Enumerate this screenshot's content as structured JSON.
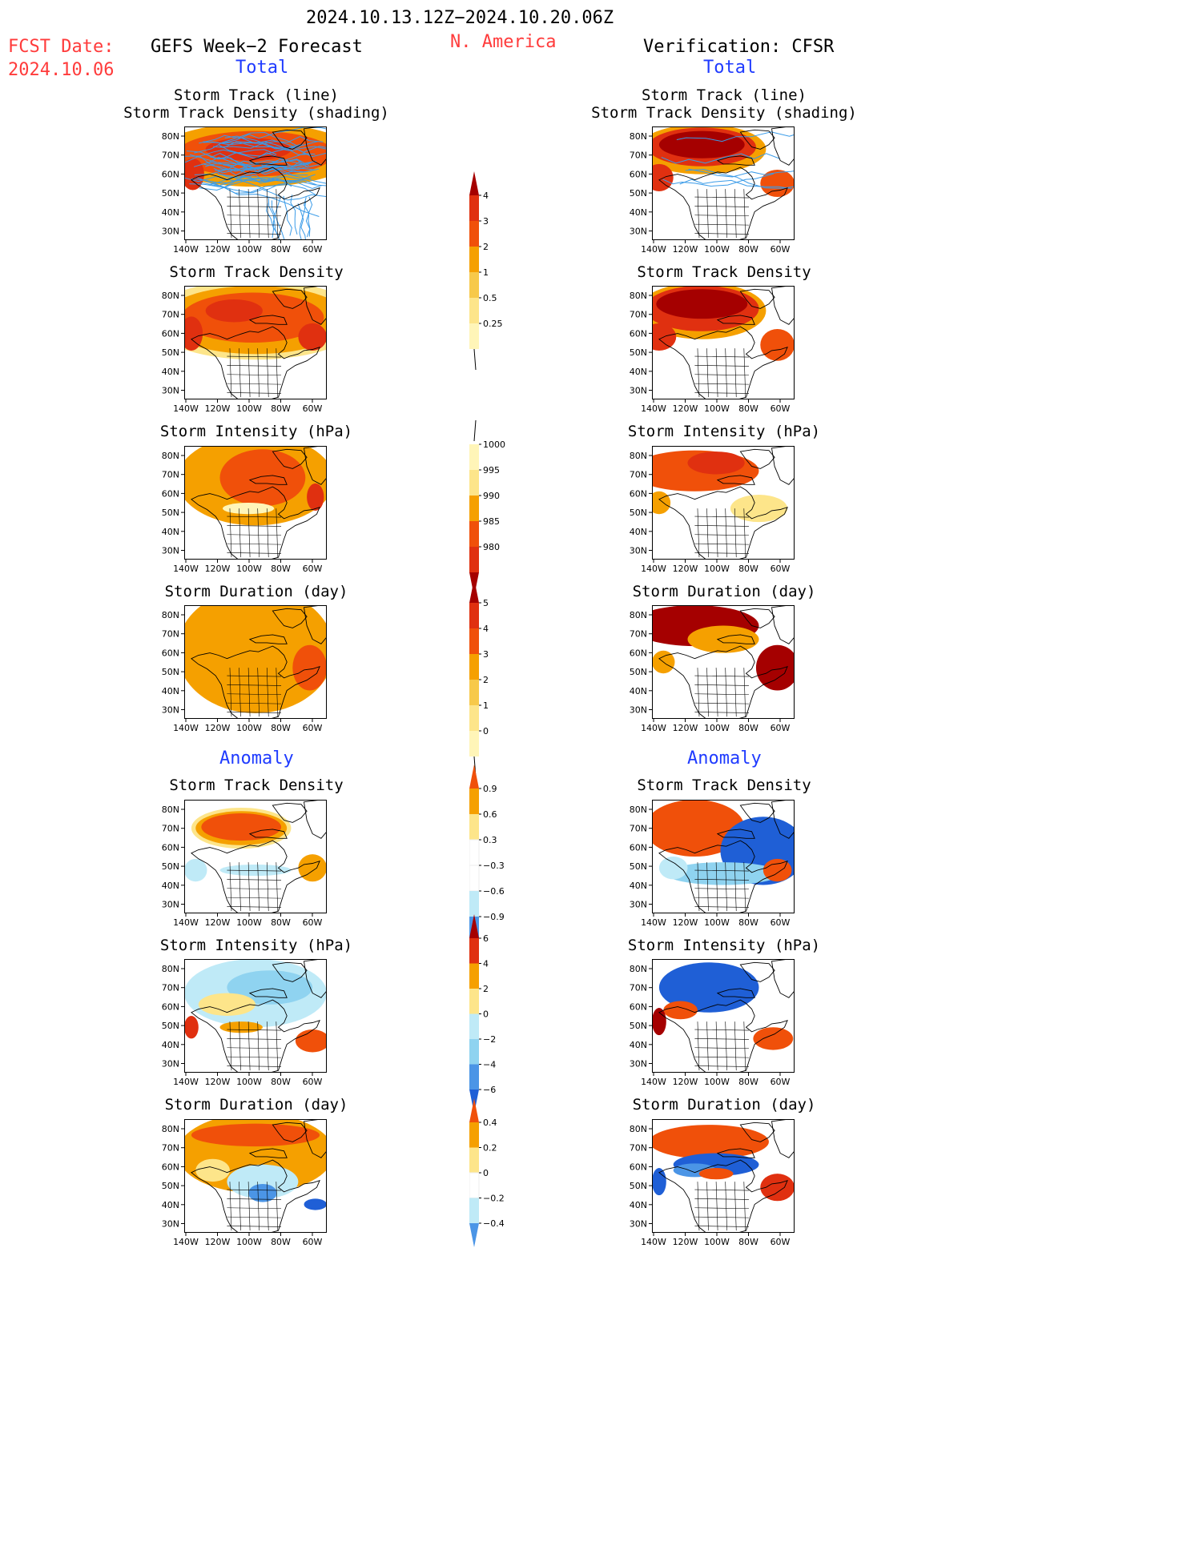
{
  "header": {
    "date_range": "2024.10.13.12Z−2024.10.20.06Z",
    "fcst_label": "FCST Date:",
    "fcst_date": "2024.10.06",
    "left_title": "GEFS Week−2 Forecast",
    "region": "N. America",
    "right_title": "Verification: CFSR",
    "left_section": "Total",
    "right_section": "Total",
    "left_anomaly": "Anomaly",
    "right_anomaly": "Anomaly"
  },
  "panel_titles": {
    "track_line": "Storm Track (line)",
    "track_shading": "Storm Track Density (shading)",
    "density": "Storm Track Density",
    "intensity": "Storm Intensity (hPa)",
    "duration": "Storm Duration (day)"
  },
  "axes": {
    "lat_labels": [
      "80N",
      "70N",
      "60N",
      "50N",
      "40N",
      "30N"
    ],
    "lon_labels": [
      "140W",
      "120W",
      "100W",
      "80W",
      "60W"
    ]
  },
  "colorbars": {
    "density_total": [
      "4",
      "3",
      "2",
      "1",
      "0.5",
      "0.25"
    ],
    "intensity_total": [
      "1000",
      "995",
      "990",
      "985",
      "980"
    ],
    "duration_total": [
      "5",
      "4",
      "3",
      "2",
      "1",
      "0"
    ],
    "density_anom": [
      "0.9",
      "0.6",
      "0.3",
      "−0.3",
      "−0.6",
      "−0.9"
    ],
    "intensity_anom": [
      "6",
      "4",
      "2",
      "0",
      "−2",
      "−4",
      "−6"
    ],
    "duration_anom": [
      "0.4",
      "0.2",
      "0",
      "−0.2",
      "−0.4"
    ]
  },
  "colors": {
    "dark_red": "#a50000",
    "red": "#e03010",
    "orange_red": "#f0500a",
    "orange": "#f5a000",
    "light_orange": "#f7c94a",
    "yellow": "#fde58a",
    "pale_yellow": "#fff5b8",
    "white": "#ffffff",
    "pale_blue": "#bfeaf7",
    "light_blue": "#8fd3f0",
    "mid_blue": "#4b95e6",
    "blue": "#1f5fd6",
    "track_blue": "#3a9be8",
    "title_red": "#ff3b3b",
    "title_blue": "#1f3bff"
  }
}
